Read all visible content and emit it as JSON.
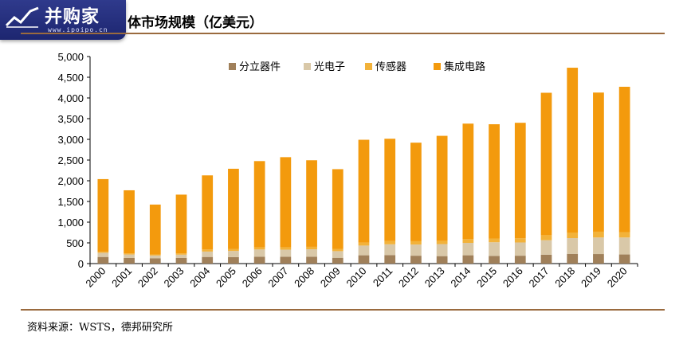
{
  "header": {
    "logo_text": "并购家",
    "logo_url": "www.ipoipo.cn",
    "title": "体市场规模（亿美元）"
  },
  "footer": {
    "source": "资料来源：WSTS，德邦研究所"
  },
  "colors": {
    "rule": "#9a6a3e",
    "logo_bg": "#2a347f"
  },
  "chart_data": {
    "type": "bar",
    "stacked": true,
    "categories": [
      "2000",
      "2001",
      "2002",
      "2003",
      "2004",
      "2005",
      "2006",
      "2007",
      "2008",
      "2009",
      "2010",
      "2011",
      "2012",
      "2013",
      "2014",
      "2015",
      "2016",
      "2017",
      "2018",
      "2019",
      "2020"
    ],
    "series": [
      {
        "name": "分立器件",
        "color": "#a0805a",
        "values": [
          160,
          135,
          125,
          135,
          160,
          155,
          165,
          165,
          165,
          140,
          200,
          205,
          190,
          180,
          200,
          185,
          190,
          215,
          235,
          230,
          220
        ]
      },
      {
        "name": "光电子",
        "color": "#d9c8a8",
        "values": [
          100,
          85,
          70,
          80,
          130,
          150,
          175,
          170,
          180,
          160,
          235,
          260,
          270,
          290,
          300,
          330,
          320,
          350,
          380,
          400,
          410
        ]
      },
      {
        "name": "传感器",
        "color": "#f2b23a",
        "values": [
          25,
          25,
          25,
          30,
          50,
          50,
          50,
          55,
          60,
          55,
          70,
          80,
          80,
          80,
          90,
          90,
          100,
          120,
          135,
          140,
          130
        ]
      },
      {
        "name": "集成电路",
        "color": "#f39a0d",
        "values": [
          1755,
          1525,
          1205,
          1420,
          1790,
          1935,
          2085,
          2180,
          2090,
          1925,
          2485,
          2470,
          2380,
          2535,
          2790,
          2760,
          2790,
          3440,
          3980,
          3360,
          3510
        ]
      }
    ],
    "ylim": [
      0,
      5000
    ],
    "yticks": [
      "0",
      "500",
      "1,000",
      "1,500",
      "2,000",
      "2,500",
      "3,000",
      "3,500",
      "4,000",
      "4,500",
      "5,000"
    ],
    "xlabel": "",
    "ylabel": "",
    "legend_position": "top",
    "grid": false
  }
}
